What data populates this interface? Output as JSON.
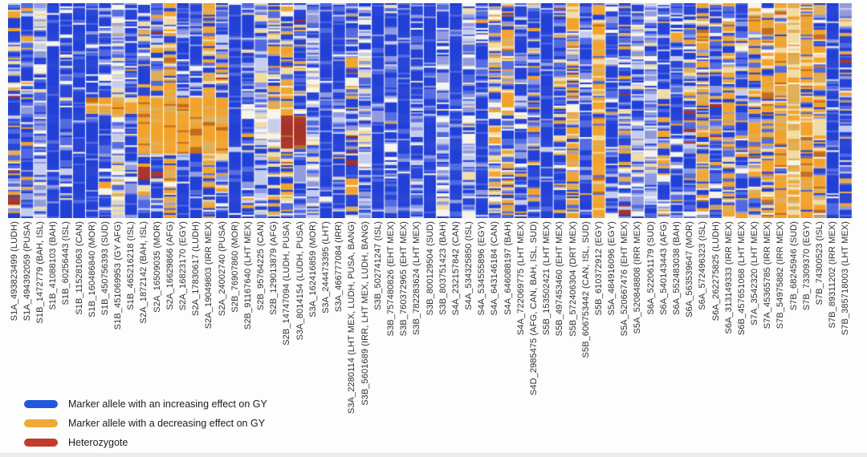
{
  "figure": {
    "background": "#fdfdfd"
  },
  "chart_data": {
    "type": "heatmap",
    "title": "",
    "xlabel": "",
    "ylabel": "",
    "note": "Genotype heatmap: 65 marker columns x ~130 genotype rows; cell colors encode allele effect class; per-column color-mix profiles and solid blocks estimated from the figure pixels.",
    "x_labels": [
      "S1A_493823499 (LUDH)",
      "S1A_494392059 (PUSA)",
      "S1B_1472779 (BAH, ISL)",
      "S1B_41088103 (BAH)",
      "S1B_60256443 (ISL)",
      "S1B_115281063 (CAN)",
      "S1B_160486840 (MOR)",
      "S1B_450756393 (SUD)",
      "S1B_451069953 (GY AFG)",
      "S1B_465216218 (ISL)",
      "S2A_1872142 (BAH, ISL)",
      "S2A_16509035 (MOR)",
      "S2A_16629866 (AFG)",
      "S2A_16823170 (EGY)",
      "S2A_17830617 (LUDH)",
      "S2A_19049803 (IRR MEX)",
      "S2A_24002740 (PUSA)",
      "S2B_76907860 (MOR)",
      "S2B_91167640 (LHT MEX)",
      "S2B_95764225 (CAN)",
      "S2B_129013879 (AFG)",
      "S2B_14747094 (LUDH, PUSA)",
      "S3A_8014154 (LUDH, PUSA)",
      "S3A_162416859 (MOR)",
      "S3A_244473395 (LHT)",
      "S3A_466777084 (IRR)",
      "S3A_2280114 (LHT MEX, LUDH, PUSA, BANG)",
      "S3B_5601689 (IRR, LHT MEX, LUDH, BANG)",
      "S3B_502741247 (ISL)",
      "S3B_757480826 (EHT MEX)",
      "S3B_760372965 (EHT MEX)",
      "S3B_782283624 (LHT MEX)",
      "S3B_800129504 (SUD)",
      "S3B_803751423 (BAH)",
      "S4A_232157842 (CAN)",
      "S4A_534325850 (ISL)",
      "S4A_534555896 (EGY)",
      "S4A_643146184 (CAN)",
      "S4A_646088197 (BAH)",
      "S4A_722069775 (LHT MEX)",
      "S4D_2985475 (AFG, CAN, BAH, ISL, SUD)",
      "S5B_153502421 (LHT MEX)",
      "S5B_497453460 (EHT MEX)",
      "S5B_572406304 (DRT MEX)",
      "S5B_606753442 (CAN, ISL, SUD)",
      "S5B_610372912 (EGY)",
      "S5A_484916096 (EGY)",
      "S5A_520667476 (EHT MEX)",
      "S5A_520848808 (IRR MEX)",
      "S6A_522061179 (SUD)",
      "S6A_540143443 (AFG)",
      "S6A_552483038 (BAH)",
      "S6A_563539647 (MOR)",
      "S6A_572496323 (ISL)",
      "S6A_262275825 (LUDH)",
      "S6A_313149333 (IRR MEX)",
      "S6B_457651068 (LHT MEX)",
      "S7A_3542320 (LHT MEX)",
      "S7A_45365785 (IRR MEX)",
      "S7B_54975882 (IRR MEX)",
      "S7B_68245946 (SUD)",
      "S7B_73309370 (EGY)",
      "S7B_74300523 (ISL)",
      "S7B_89311202 (IRR MEX)",
      "S7B_385718003 (LHT MEX)"
    ],
    "legend": [
      {
        "swatch": "#2256dd",
        "label": "Marker allele with an increasing effect on GY"
      },
      {
        "swatch": "#f0a838",
        "label": "Marker allele with a decreasing effect on GY"
      },
      {
        "swatch": "#c23b2e",
        "label": "Heterozygote"
      }
    ],
    "legend_position": "bottom-left",
    "grid": false,
    "rows": 130,
    "seed": 20,
    "row_coherence": 0.3,
    "palette": {
      "B": "#2240d6",
      "b": "#5068e0",
      "l": "#8f99dd",
      "L": "#c5cdf0",
      "w": "#f7f4ea",
      "c": "#f0dca6",
      "t": "#dfae58",
      "o": "#f2a32c",
      "d": "#c06a20",
      "r": "#a63326"
    },
    "profiles": {
      "solidBlue": {
        "B": 0.78,
        "b": 0.13,
        "l": 0.05,
        "L": 0.02,
        "w": 0.02
      },
      "blueStriped": {
        "B": 0.5,
        "b": 0.22,
        "l": 0.12,
        "L": 0.07,
        "w": 0.05,
        "c": 0.02,
        "o": 0.02
      },
      "blueMixed": {
        "B": 0.4,
        "b": 0.2,
        "l": 0.1,
        "L": 0.06,
        "w": 0.05,
        "c": 0.05,
        "t": 0.05,
        "o": 0.07,
        "r": 0.02
      },
      "lightStriped": {
        "B": 0.15,
        "b": 0.15,
        "l": 0.22,
        "L": 0.22,
        "w": 0.16,
        "c": 0.1
      },
      "creamLight": {
        "b": 0.1,
        "l": 0.15,
        "L": 0.2,
        "w": 0.25,
        "c": 0.22,
        "t": 0.08
      },
      "tanStriped": {
        "B": 0.2,
        "b": 0.12,
        "l": 0.08,
        "w": 0.08,
        "c": 0.2,
        "t": 0.2,
        "o": 0.12
      },
      "creamTan": {
        "c": 0.38,
        "t": 0.28,
        "o": 0.2,
        "w": 0.1,
        "b": 0.04
      },
      "orangeMixed": {
        "B": 0.18,
        "b": 0.12,
        "l": 0.05,
        "w": 0.05,
        "c": 0.12,
        "t": 0.15,
        "o": 0.28,
        "d": 0.05
      },
      "orangeHeavy": {
        "o": 0.55,
        "t": 0.15,
        "c": 0.12,
        "d": 0.05,
        "b": 0.08,
        "B": 0.05
      },
      "blockOrangeLight": {
        "o": 0.5,
        "t": 0.25,
        "c": 0.15,
        "d": 0.1
      },
      "blockOrange": {
        "o": 0.75,
        "d": 0.12,
        "t": 0.13
      },
      "blockLight": {
        "w": 0.45,
        "L": 0.25,
        "c": 0.2,
        "l": 0.1
      },
      "blockMaroon": {
        "r": 0.8,
        "d": 0.1,
        "o": 0.1
      }
    },
    "column_profiles": [
      "blueMixed",
      "blueMixed",
      "lightStriped",
      "solidBlue",
      "blueStriped",
      "solidBlue",
      "solidBlue",
      "blueStriped",
      "creamLight",
      "blueStriped",
      "blueMixed",
      "blueMixed",
      "orangeMixed",
      "blueStriped",
      "blueStriped",
      "orangeMixed",
      "blueMixed",
      "solidBlue",
      "blueStriped",
      "lightStriped",
      "tanStriped",
      "orangeMixed",
      "blueMixed",
      "lightStriped",
      "solidBlue",
      "blueStriped",
      "blueMixed",
      "lightStriped",
      "solidBlue",
      "blueStriped",
      "solidBlue",
      "blueStriped",
      "solidBlue",
      "lightStriped",
      "solidBlue",
      "lightStriped",
      "blueStriped",
      "tanStriped",
      "orangeMixed",
      "blueStriped",
      "blueMixed",
      "solidBlue",
      "blueMixed",
      "orangeMixed",
      "blueStriped",
      "orangeHeavy",
      "blueStriped",
      "blueMixed",
      "lightStriped",
      "lightStriped",
      "blueMixed",
      "blueStriped",
      "blueMixed",
      "orangeMixed",
      "blueMixed",
      "orangeMixed",
      "blueMixed",
      "orangeMixed",
      "orangeMixed",
      "orangeHeavy",
      "creamTan",
      "orangeHeavy",
      "orangeMixed",
      "solidBlue",
      "blueMixed"
    ],
    "blocks": [
      {
        "c0": 6,
        "c1": 11,
        "r0": 57,
        "r1": 66,
        "profile": "blockOrangeLight"
      },
      {
        "c0": 10,
        "c1": 16,
        "r0": 57,
        "r1": 90,
        "profile": "blockOrange"
      },
      {
        "c0": 19,
        "c1": 20,
        "r0": 64,
        "r1": 85,
        "profile": "blockLight"
      },
      {
        "c0": 21,
        "c1": 22,
        "r0": 68,
        "r1": 87,
        "profile": "blockMaroon"
      }
    ]
  }
}
